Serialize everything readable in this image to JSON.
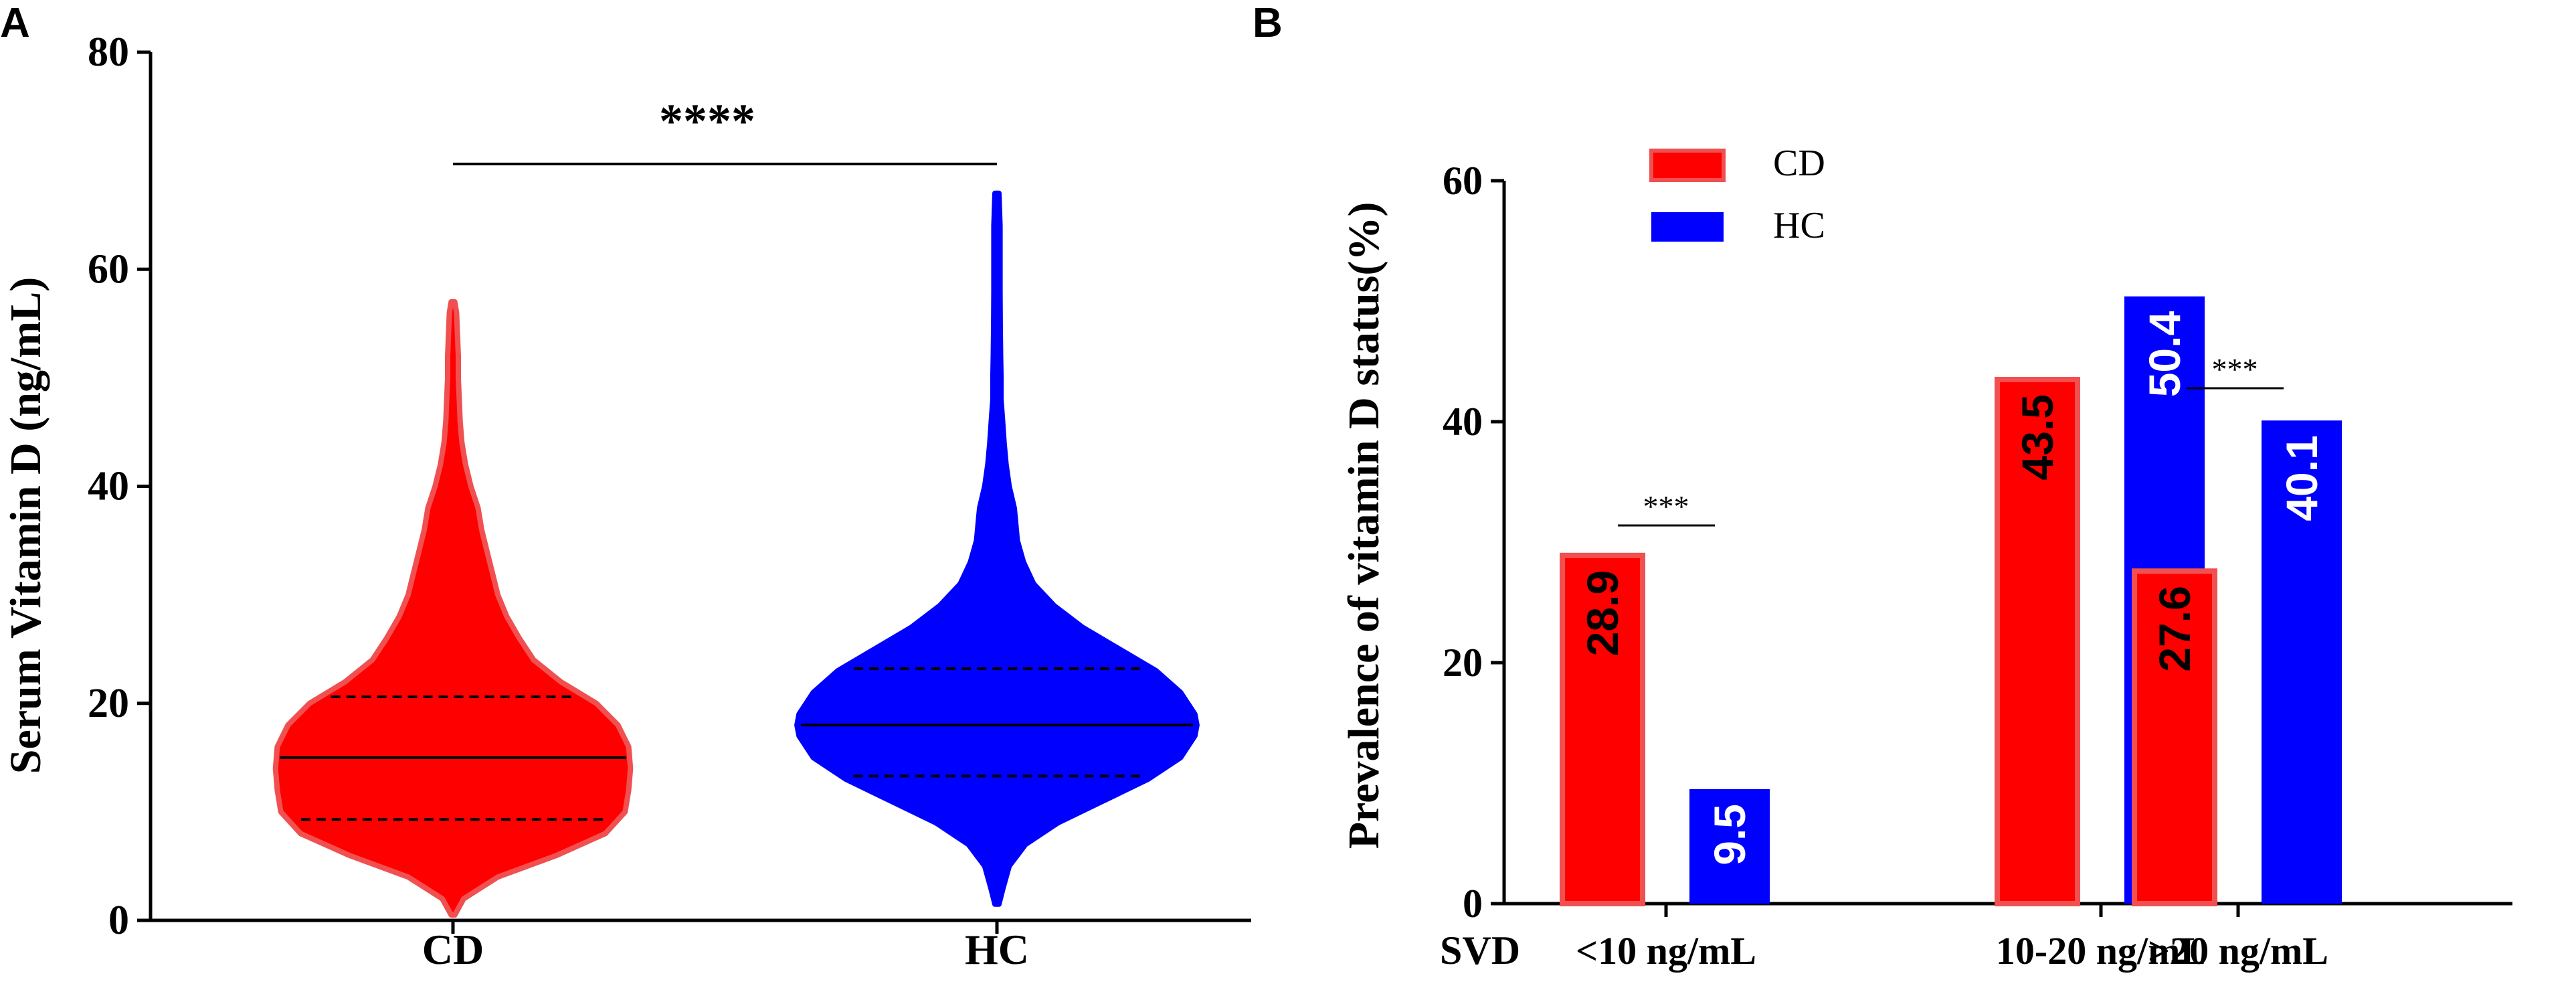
{
  "colors": {
    "cd": "#ff0000",
    "cd_edge": "#f05050",
    "hc": "#0000ff",
    "axis": "#000000"
  },
  "chart_data": [
    {
      "panel": "A",
      "type": "violin",
      "ylabel": "Serum Vitamin D (ng/mL)",
      "ylim": [
        0,
        80
      ],
      "yticks": [
        0,
        20,
        40,
        60,
        80
      ],
      "categories": [
        "CD",
        "HC"
      ],
      "significance": "****",
      "series": [
        {
          "name": "CD",
          "median": 15.0,
          "q1": 9.3,
          "q3": 20.6,
          "min": 0.5,
          "max": 57.0,
          "profile": [
            [
              0.5,
              0.01
            ],
            [
              2,
              0.06
            ],
            [
              4,
              0.25
            ],
            [
              6,
              0.58
            ],
            [
              8,
              0.85
            ],
            [
              10,
              0.96
            ],
            [
              12,
              0.98
            ],
            [
              14,
              0.99
            ],
            [
              16,
              0.98
            ],
            [
              18,
              0.92
            ],
            [
              20,
              0.8
            ],
            [
              22,
              0.6
            ],
            [
              24,
              0.45
            ],
            [
              26,
              0.37
            ],
            [
              28,
              0.3
            ],
            [
              30,
              0.25
            ],
            [
              32,
              0.22
            ],
            [
              34,
              0.19
            ],
            [
              36,
              0.16
            ],
            [
              38,
              0.14
            ],
            [
              40,
              0.1
            ],
            [
              42,
              0.07
            ],
            [
              44,
              0.05
            ],
            [
              46,
              0.04
            ],
            [
              48,
              0.035
            ],
            [
              50,
              0.03
            ],
            [
              52,
              0.03
            ],
            [
              54,
              0.025
            ],
            [
              56,
              0.02
            ],
            [
              57,
              0.01
            ]
          ]
        },
        {
          "name": "HC",
          "median": 18.0,
          "q1": 13.3,
          "q3": 23.2,
          "min": 1.5,
          "max": 67.0,
          "profile": [
            [
              1.5,
              0.01
            ],
            [
              3,
              0.03
            ],
            [
              5,
              0.06
            ],
            [
              7,
              0.14
            ],
            [
              9,
              0.3
            ],
            [
              11,
              0.52
            ],
            [
              13,
              0.74
            ],
            [
              15,
              0.9
            ],
            [
              17,
              0.97
            ],
            [
              18,
              0.98
            ],
            [
              19,
              0.97
            ],
            [
              21,
              0.9
            ],
            [
              23,
              0.78
            ],
            [
              25,
              0.6
            ],
            [
              27,
              0.42
            ],
            [
              29,
              0.28
            ],
            [
              31,
              0.18
            ],
            [
              33,
              0.13
            ],
            [
              35,
              0.1
            ],
            [
              37,
              0.09
            ],
            [
              38,
              0.085
            ],
            [
              40,
              0.06
            ],
            [
              42,
              0.045
            ],
            [
              44,
              0.035
            ],
            [
              46,
              0.028
            ],
            [
              48,
              0.02
            ],
            [
              50,
              0.02
            ],
            [
              52,
              0.018
            ],
            [
              55,
              0.016
            ],
            [
              58,
              0.015
            ],
            [
              61,
              0.015
            ],
            [
              64,
              0.015
            ],
            [
              67,
              0.01
            ]
          ]
        }
      ]
    },
    {
      "panel": "B",
      "type": "bar",
      "ylabel": "Prevalence of vitamin D status(%)",
      "ylim": [
        0,
        60
      ],
      "yticks": [
        0,
        20,
        40,
        60
      ],
      "xlabel_prefix": "SVD",
      "categories": [
        "<10 ng/mL",
        "10-20 ng/mL",
        ">20 ng/mL"
      ],
      "series": [
        {
          "name": "CD",
          "values": [
            28.9,
            43.5,
            27.6
          ]
        },
        {
          "name": "HC",
          "values": [
            9.5,
            50.4,
            40.1
          ]
        }
      ],
      "legend": [
        "CD",
        "HC"
      ],
      "legend_position": "top-left",
      "annotations": [
        {
          "category": "<10 ng/mL",
          "text": "***"
        },
        {
          "category": ">20 ng/mL",
          "text": "***"
        }
      ],
      "bar_labels": [
        "28.9",
        "9.5",
        "43.5",
        "50.4",
        "27.6",
        "40.1"
      ]
    }
  ]
}
